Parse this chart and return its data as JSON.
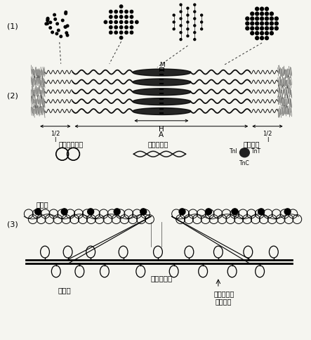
{
  "background_color": "#f5f5f0",
  "label_1": "(1)",
  "label_2": "(2)",
  "label_3": "(3)",
  "label_M": "M",
  "label_H": "H",
  "label_A": "A",
  "label_half_I_left": "1/2\nI",
  "label_half_I_right": "1/2\nI",
  "text_actin": "肌动蛋白单体",
  "text_tropomyosin": "原肌球蛋白",
  "text_troponin": "肌原蛋白",
  "text_thin_filament": "细肌丝",
  "text_thick_filament": "粗肌丝",
  "text_myosin_rod": "肌球蛋白杆",
  "text_myosin_head": "肌球蛋白头\n（横桥）",
  "text_TnT": "TnT",
  "text_TnI": "TnI",
  "text_TnC": "TnC"
}
